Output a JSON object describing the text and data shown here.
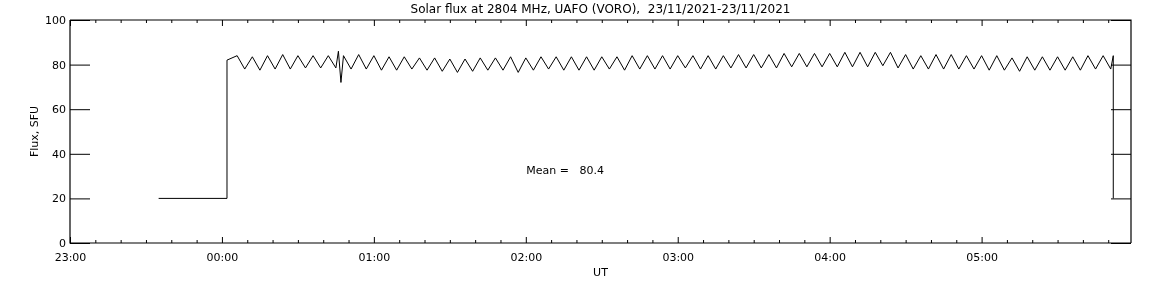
{
  "chart_data": {
    "type": "line",
    "title": "Solar flux at 2804 MHz, UAFO (VORO),  23/11/2021-23/11/2021",
    "xlabel": "UT",
    "ylabel": "Flux, SFU",
    "annotations": [
      "Mean =   80.4"
    ],
    "xlim": [
      "2021-11-22T23:00",
      "2021-11-23T05:59"
    ],
    "ylim": [
      0,
      100
    ],
    "xticks": [
      {
        "value": "2021-11-22T23:00",
        "label": "23:00"
      },
      {
        "value": "2021-11-22T23:10",
        "label": null
      },
      {
        "value": "2021-11-22T23:20",
        "label": null
      },
      {
        "value": "2021-11-22T23:30",
        "label": null
      },
      {
        "value": "2021-11-22T23:40",
        "label": null
      },
      {
        "value": "2021-11-22T23:50",
        "label": null
      },
      {
        "value": "2021-11-23T00:00",
        "label": "00:00"
      },
      {
        "value": "2021-11-23T00:10",
        "label": null
      },
      {
        "value": "2021-11-23T00:20",
        "label": null
      },
      {
        "value": "2021-11-23T00:30",
        "label": null
      },
      {
        "value": "2021-11-23T00:40",
        "label": null
      },
      {
        "value": "2021-11-23T00:50",
        "label": null
      },
      {
        "value": "2021-11-23T01:00",
        "label": "01:00"
      },
      {
        "value": "2021-11-23T01:10",
        "label": null
      },
      {
        "value": "2021-11-23T01:20",
        "label": null
      },
      {
        "value": "2021-11-23T01:30",
        "label": null
      },
      {
        "value": "2021-11-23T01:40",
        "label": null
      },
      {
        "value": "2021-11-23T01:50",
        "label": null
      },
      {
        "value": "2021-11-23T02:00",
        "label": "02:00"
      },
      {
        "value": "2021-11-23T02:10",
        "label": null
      },
      {
        "value": "2021-11-23T02:20",
        "label": null
      },
      {
        "value": "2021-11-23T02:30",
        "label": null
      },
      {
        "value": "2021-11-23T02:40",
        "label": null
      },
      {
        "value": "2021-11-23T02:50",
        "label": null
      },
      {
        "value": "2021-11-23T03:00",
        "label": "03:00"
      },
      {
        "value": "2021-11-23T03:10",
        "label": null
      },
      {
        "value": "2021-11-23T03:20",
        "label": null
      },
      {
        "value": "2021-11-23T03:30",
        "label": null
      },
      {
        "value": "2021-11-23T03:40",
        "label": null
      },
      {
        "value": "2021-11-23T03:50",
        "label": null
      },
      {
        "value": "2021-11-23T04:00",
        "label": "04:00"
      },
      {
        "value": "2021-11-23T04:10",
        "label": null
      },
      {
        "value": "2021-11-23T04:20",
        "label": null
      },
      {
        "value": "2021-11-23T04:30",
        "label": null
      },
      {
        "value": "2021-11-23T04:40",
        "label": null
      },
      {
        "value": "2021-11-23T04:50",
        "label": null
      },
      {
        "value": "2021-11-23T05:00",
        "label": "05:00"
      },
      {
        "value": "2021-11-23T05:10",
        "label": null
      },
      {
        "value": "2021-11-23T05:20",
        "label": null
      },
      {
        "value": "2021-11-23T05:30",
        "label": null
      },
      {
        "value": "2021-11-23T05:40",
        "label": null
      },
      {
        "value": "2021-11-23T05:50",
        "label": null
      }
    ],
    "yticks": [
      0,
      20,
      40,
      60,
      80,
      100
    ],
    "grid": false,
    "marker": "none",
    "line_style": "solid",
    "series": [
      {
        "color": "#000000",
        "x": [
          "2021-11-22T23:35",
          "2021-11-23T00:02",
          "2021-11-23T00:02",
          "2021-11-23T00:06",
          "2021-11-23T00:09",
          "2021-11-23T00:12",
          "2021-11-23T00:15",
          "2021-11-23T00:18",
          "2021-11-23T00:21",
          "2021-11-23T00:24",
          "2021-11-23T00:27",
          "2021-11-23T00:30",
          "2021-11-23T00:33",
          "2021-11-23T00:36",
          "2021-11-23T00:39",
          "2021-11-23T00:42",
          "2021-11-23T00:45",
          "2021-11-23T00:46",
          "2021-11-23T00:47",
          "2021-11-23T00:48",
          "2021-11-23T00:51",
          "2021-11-23T00:54",
          "2021-11-23T00:57",
          "2021-11-23T01:00",
          "2021-11-23T01:03",
          "2021-11-23T01:06",
          "2021-11-23T01:09",
          "2021-11-23T01:12",
          "2021-11-23T01:15",
          "2021-11-23T01:18",
          "2021-11-23T01:21",
          "2021-11-23T01:24",
          "2021-11-23T01:27",
          "2021-11-23T01:30",
          "2021-11-23T01:33",
          "2021-11-23T01:36",
          "2021-11-23T01:39",
          "2021-11-23T01:42",
          "2021-11-23T01:45",
          "2021-11-23T01:48",
          "2021-11-23T01:51",
          "2021-11-23T01:54",
          "2021-11-23T01:57",
          "2021-11-23T02:00",
          "2021-11-23T02:03",
          "2021-11-23T02:06",
          "2021-11-23T02:09",
          "2021-11-23T02:12",
          "2021-11-23T02:15",
          "2021-11-23T02:18",
          "2021-11-23T02:21",
          "2021-11-23T02:24",
          "2021-11-23T02:27",
          "2021-11-23T02:30",
          "2021-11-23T02:33",
          "2021-11-23T02:36",
          "2021-11-23T02:39",
          "2021-11-23T02:42",
          "2021-11-23T02:45",
          "2021-11-23T02:48",
          "2021-11-23T02:51",
          "2021-11-23T02:54",
          "2021-11-23T02:57",
          "2021-11-23T03:00",
          "2021-11-23T03:03",
          "2021-11-23T03:06",
          "2021-11-23T03:09",
          "2021-11-23T03:12",
          "2021-11-23T03:15",
          "2021-11-23T03:18",
          "2021-11-23T03:21",
          "2021-11-23T03:24",
          "2021-11-23T03:27",
          "2021-11-23T03:30",
          "2021-11-23T03:33",
          "2021-11-23T03:36",
          "2021-11-23T03:39",
          "2021-11-23T03:42",
          "2021-11-23T03:45",
          "2021-11-23T03:48",
          "2021-11-23T03:51",
          "2021-11-23T03:54",
          "2021-11-23T03:57",
          "2021-11-23T04:00",
          "2021-11-23T04:03",
          "2021-11-23T04:06",
          "2021-11-23T04:09",
          "2021-11-23T04:12",
          "2021-11-23T04:15",
          "2021-11-23T04:18",
          "2021-11-23T04:21",
          "2021-11-23T04:24",
          "2021-11-23T04:27",
          "2021-11-23T04:30",
          "2021-11-23T04:33",
          "2021-11-23T04:36",
          "2021-11-23T04:39",
          "2021-11-23T04:42",
          "2021-11-23T04:45",
          "2021-11-23T04:48",
          "2021-11-23T04:51",
          "2021-11-23T04:54",
          "2021-11-23T04:57",
          "2021-11-23T05:00",
          "2021-11-23T05:03",
          "2021-11-23T05:06",
          "2021-11-23T05:09",
          "2021-11-23T05:12",
          "2021-11-23T05:15",
          "2021-11-23T05:18",
          "2021-11-23T05:21",
          "2021-11-23T05:24",
          "2021-11-23T05:27",
          "2021-11-23T05:30",
          "2021-11-23T05:33",
          "2021-11-23T05:36",
          "2021-11-23T05:39",
          "2021-11-23T05:42",
          "2021-11-23T05:45",
          "2021-11-23T05:48",
          "2021-11-23T05:51",
          "2021-11-23T05:52",
          "2021-11-23T05:52"
        ],
        "values": [
          20,
          20,
          82,
          84,
          78,
          83.5,
          77.5,
          84,
          78,
          84.5,
          78,
          84,
          78.5,
          84,
          78.5,
          84,
          78.5,
          86,
          72,
          84,
          78,
          84.5,
          78,
          84,
          77.5,
          83.5,
          77.5,
          83.5,
          78,
          83,
          77.5,
          83,
          77,
          82.5,
          76.5,
          82.5,
          77,
          83,
          77.5,
          83,
          77.5,
          83.5,
          76.5,
          83,
          77.5,
          83.5,
          78,
          83.5,
          77.5,
          83.5,
          77.5,
          83.5,
          77.5,
          83.5,
          78,
          83.5,
          77.5,
          84,
          78,
          84,
          78,
          84,
          78,
          84,
          78.5,
          84,
          78,
          84,
          78,
          84,
          78.5,
          84.5,
          78.5,
          84.5,
          78.5,
          84.5,
          78.5,
          85,
          79,
          85,
          79,
          85,
          79,
          85,
          79,
          85.5,
          79,
          85.5,
          79,
          85.5,
          79.5,
          85.5,
          78.5,
          84.5,
          78,
          84,
          78,
          84.5,
          78,
          84.5,
          78,
          84,
          78,
          84,
          77.5,
          84,
          77.5,
          83,
          77,
          83.5,
          77.5,
          83.5,
          77.5,
          83.5,
          77.5,
          83.5,
          77.5,
          84,
          78,
          84,
          78,
          84,
          20
        ]
      }
    ]
  }
}
